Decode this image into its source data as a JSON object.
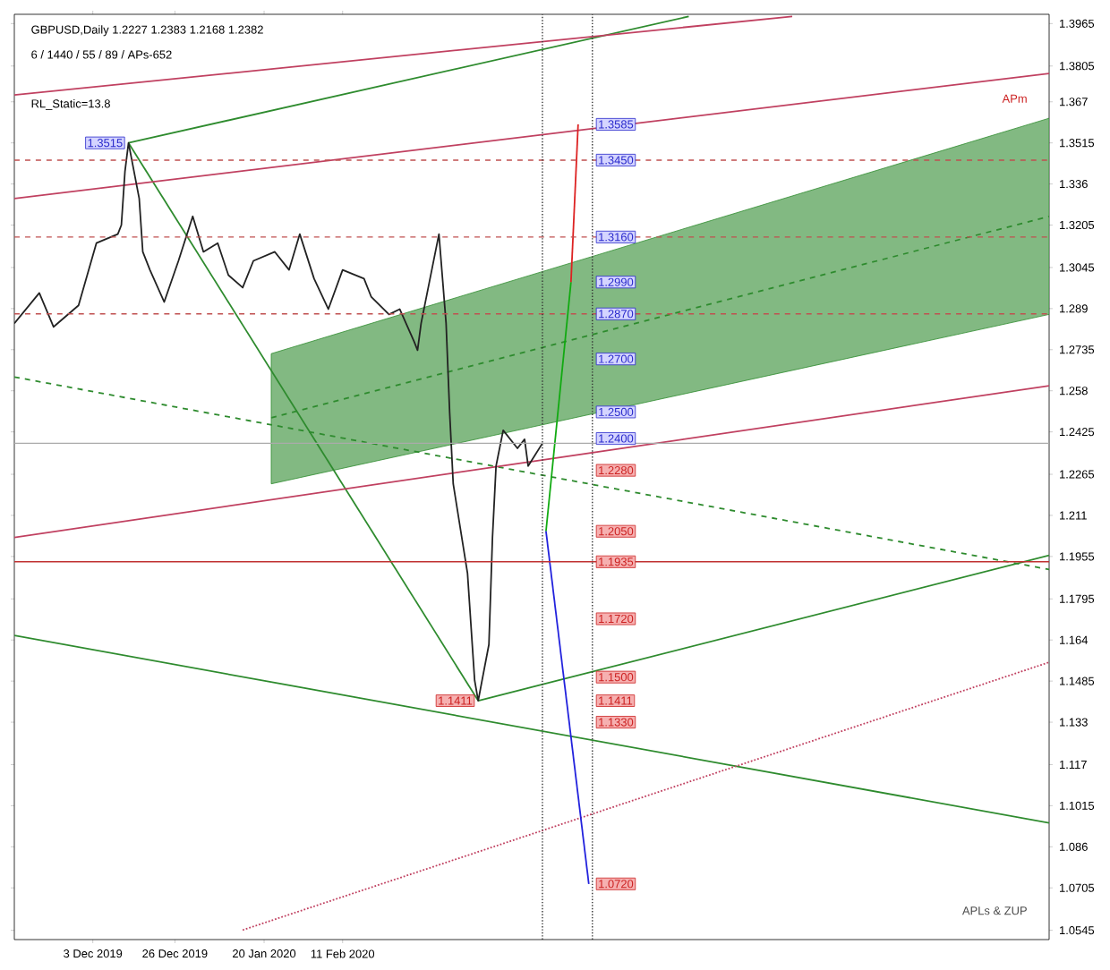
{
  "chart_data": {
    "type": "line",
    "title": "GBPUSD,Daily  1.2227 1.2383 1.2168 1.2382",
    "subtitle": "6 / 1440 / 55 / 89 / APs-652",
    "xlim": [
      "2019-11-11",
      "2020-08-27"
    ],
    "ylim": [
      1.051,
      1.4
    ],
    "xticks": [
      {
        "value": "2019-12-03",
        "label": "3 Dec 2019"
      },
      {
        "value": "2019-12-26",
        "label": "26 Dec 2019"
      },
      {
        "value": "2020-01-20",
        "label": "20 Jan 2020"
      },
      {
        "value": "2020-02-11",
        "label": "11 Feb 2020"
      }
    ],
    "yticks": [
      1.3965,
      1.3805,
      1.367,
      1.3515,
      1.336,
      1.3205,
      1.3045,
      1.289,
      1.2735,
      1.258,
      1.2425,
      1.2265,
      1.211,
      1.1955,
      1.1795,
      1.164,
      1.1485,
      1.133,
      1.117,
      1.1015,
      1.086,
      1.0705,
      1.0545
    ],
    "series": [
      {
        "color": "#2e8b2e",
        "line_style": "dashed",
        "x": [
          "2020-01-22",
          "2020-08-27"
        ],
        "values": [
          1.2478,
          1.3238
        ],
        "lower": [
          1.2229,
          1.2868
        ],
        "upper": [
          1.272,
          1.3608
        ]
      },
      {
        "color": "#2e8b2e",
        "x": [
          "2019-12-13",
          "2020-03-20"
        ],
        "values": [
          1.3515,
          1.1411
        ]
      },
      {
        "color": "#2e8b2e",
        "x": [
          "2019-12-13",
          "2020-05-18"
        ],
        "values": [
          1.3515,
          1.3992
        ]
      },
      {
        "color": "#2e8b2e",
        "x": [
          "2019-11-11",
          "2020-08-27"
        ],
        "values": [
          1.1657,
          1.095
        ]
      },
      {
        "color": "#2e8b2e",
        "x": [
          "2020-03-20",
          "2020-08-27"
        ],
        "values": [
          1.1411,
          1.1959
        ]
      },
      {
        "color": "#2e8b2e",
        "line_style": "dashed",
        "x": [
          "2019-11-11",
          "2020-08-27"
        ],
        "values": [
          1.2632,
          1.1906
        ]
      },
      {
        "color": "#c04060",
        "x": [
          "2019-11-11",
          "2020-06-16"
        ],
        "values": [
          1.3696,
          1.3992
        ]
      },
      {
        "color": "#c04060",
        "x": [
          "2019-11-11",
          "2020-08-27"
        ],
        "values": [
          1.3305,
          1.3777
        ]
      },
      {
        "color": "#c04060",
        "x": [
          "2019-11-11",
          "2020-08-27"
        ],
        "values": [
          1.2027,
          1.2599
        ]
      },
      {
        "color": "#c04060",
        "line_style": "dotted",
        "x": [
          "2020-01-14",
          "2020-08-27"
        ],
        "values": [
          1.0546,
          1.1556
        ]
      },
      {
        "color": "#222222",
        "x": [
          "2019-11-11",
          "2019-11-18",
          "2019-11-22",
          "2019-11-29",
          "2019-12-04",
          "2019-12-10",
          "2019-12-11",
          "2019-12-12",
          "2019-12-13",
          "2019-12-16",
          "2019-12-17",
          "2019-12-19",
          "2019-12-23",
          "2019-12-27",
          "2019-12-31",
          "2020-01-03",
          "2020-01-07",
          "2020-01-10",
          "2020-01-14",
          "2020-01-17",
          "2020-01-23",
          "2020-01-27",
          "2020-01-30",
          "2020-02-03",
          "2020-02-07",
          "2020-02-11",
          "2020-02-17",
          "2020-02-19",
          "2020-02-24",
          "2020-02-27",
          "2020-03-02",
          "2020-03-03",
          "2020-03-04",
          "2020-03-06",
          "2020-03-09",
          "2020-03-10",
          "2020-03-11",
          "2020-03-12",
          "2020-03-13",
          "2020-03-17",
          "2020-03-19",
          "2020-03-20",
          "2020-03-23",
          "2020-03-24",
          "2020-03-25",
          "2020-03-27",
          "2020-03-31",
          "2020-04-02",
          "2020-04-03",
          "2020-04-07"
        ],
        "values": [
          1.2834,
          1.2949,
          1.2821,
          1.2902,
          1.3137,
          1.3171,
          1.3205,
          1.3406,
          1.3515,
          1.3305,
          1.3104,
          1.3036,
          1.2915,
          1.307,
          1.3238,
          1.3104,
          1.3137,
          1.3016,
          1.2969,
          1.307,
          1.3104,
          1.3036,
          1.3171,
          1.3003,
          1.2888,
          1.3036,
          1.3003,
          1.2935,
          1.2868,
          1.2888,
          1.2767,
          1.2733,
          1.2834,
          1.2969,
          1.3171,
          1.3003,
          1.2834,
          1.2498,
          1.2229,
          1.1892,
          1.1488,
          1.1411,
          1.1623,
          1.2027,
          1.2296,
          1.2431,
          1.2363,
          1.2397,
          1.2296,
          1.2382
        ]
      },
      {
        "color": "#11aa11",
        "x": [
          "2020-04-08",
          "2020-04-15"
        ],
        "values": [
          1.205,
          1.299
        ]
      },
      {
        "color": "#dd2222",
        "x": [
          "2020-04-15",
          "2020-04-17"
        ],
        "values": [
          1.299,
          1.3585
        ]
      },
      {
        "color": "#2222dd",
        "x": [
          "2020-04-08",
          "2020-04-20"
        ],
        "values": [
          1.205,
          1.072
        ]
      }
    ],
    "ref_lines": [
      {
        "axis": "y",
        "value": 1.345,
        "color": "#c05050",
        "line_style": "dashed"
      },
      {
        "axis": "y",
        "value": 1.316,
        "color": "#c05050",
        "line_style": "dashed"
      },
      {
        "axis": "y",
        "value": 1.287,
        "color": "#c05050",
        "line_style": "dashed"
      },
      {
        "axis": "y",
        "value": 1.1935,
        "color": "#c03030",
        "line_style": "solid"
      },
      {
        "axis": "y",
        "value": 1.2382,
        "color": "#aaaaaa",
        "line_style": "solid"
      },
      {
        "axis": "x",
        "value": "2020-04-07",
        "color": "#333333",
        "line_style": "dotted"
      },
      {
        "axis": "x",
        "value": "2020-04-21",
        "color": "#333333",
        "line_style": "dotted"
      }
    ],
    "annotations": [
      "RL_Static=13.8",
      "APm",
      "APLs & ZUP",
      {
        "text": "1.3515",
        "x": "2019-12-12",
        "y": 1.3515
      },
      {
        "text": "1.1411",
        "x": "2020-03-19",
        "y": 1.1411
      },
      {
        "text": "1.3585",
        "x": "2020-04-22",
        "y": 1.3585
      },
      {
        "text": "1.3450",
        "x": "2020-04-22",
        "y": 1.345
      },
      {
        "text": "1.3160",
        "x": "2020-04-22",
        "y": 1.316
      },
      {
        "text": "1.2990",
        "x": "2020-04-22",
        "y": 1.299
      },
      {
        "text": "1.2870",
        "x": "2020-04-22",
        "y": 1.287
      },
      {
        "text": "1.2700",
        "x": "2020-04-22",
        "y": 1.27
      },
      {
        "text": "1.2500",
        "x": "2020-04-22",
        "y": 1.25
      },
      {
        "text": "1.2400",
        "x": "2020-04-22",
        "y": 1.24
      },
      {
        "text": "1.2280",
        "x": "2020-04-22",
        "y": 1.228
      },
      {
        "text": "1.2050",
        "x": "2020-04-22",
        "y": 1.205
      },
      {
        "text": "1.1935",
        "x": "2020-04-22",
        "y": 1.1935
      },
      {
        "text": "1.1720",
        "x": "2020-04-22",
        "y": 1.172
      },
      {
        "text": "1.1500",
        "x": "2020-04-22",
        "y": 1.15
      },
      {
        "text": "1.1411",
        "x": "2020-04-22",
        "y": 1.1411
      },
      {
        "text": "1.1330",
        "x": "2020-04-22",
        "y": 1.133
      },
      {
        "text": "1.0720",
        "x": "2020-04-22",
        "y": 1.072
      }
    ]
  }
}
